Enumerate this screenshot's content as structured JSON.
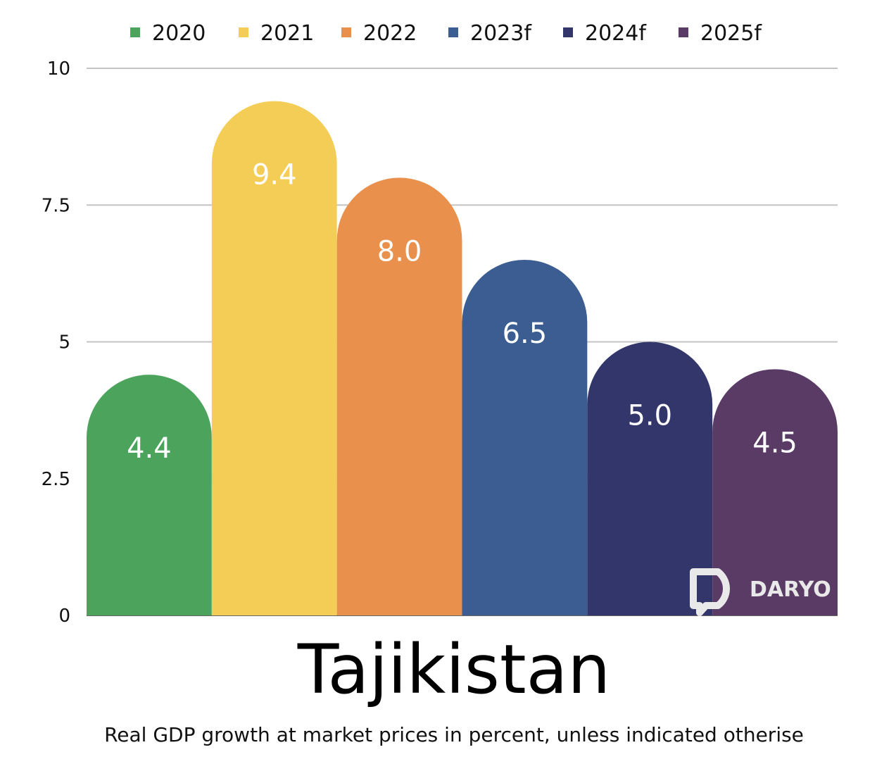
{
  "chart_data": {
    "type": "bar",
    "title": "Tajikistan",
    "subtitle": "Real GDP growth at market prices in percent, unless indicated otherise",
    "categories": [
      "2020",
      "2021",
      "2022",
      "2023f",
      "2024f",
      "2025f"
    ],
    "values": [
      4.4,
      9.4,
      8.0,
      6.5,
      5.0,
      4.5
    ],
    "value_labels": [
      "4.4",
      "9.4",
      "8.0",
      "6.5",
      "5.0",
      "4.5"
    ],
    "colors": [
      "#4ba35c",
      "#f4cd57",
      "#e8904c",
      "#3c5d92",
      "#33366a",
      "#5a3b66"
    ],
    "ylim": [
      0,
      10
    ],
    "yticks": [
      0,
      2.5,
      5,
      7.5,
      10
    ],
    "ytick_labels": [
      "0",
      "2.5",
      "5",
      "7.5",
      "10"
    ],
    "grid": true,
    "legend_position": "top",
    "xlabel": "",
    "ylabel": ""
  },
  "watermark": {
    "text": "DARYO",
    "icon": "daryo-logo-icon"
  }
}
